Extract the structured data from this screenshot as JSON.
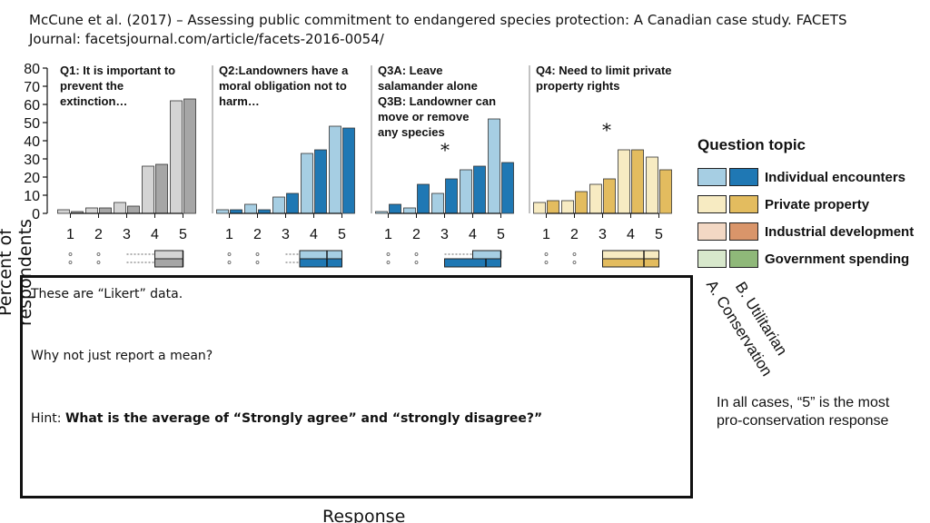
{
  "citation": {
    "line1": "McCune et al. (2017) – Assessing public commitment to endangered species protection: A Canadian case study. FACETS",
    "line2": "Journal: facetsjournal.com/article/facets-2016-0054/"
  },
  "chart_data": {
    "type": "bar",
    "ylabel": "Percent of respondents",
    "xlabel": "Response",
    "ylim": [
      0,
      80
    ],
    "yticks": [
      0,
      10,
      20,
      30,
      40,
      50,
      60,
      70,
      80
    ],
    "categories": [
      "1",
      "2",
      "3",
      "4",
      "5"
    ],
    "panels": [
      {
        "title": [
          "Q1: It is important to",
          "prevent the",
          "extinction…"
        ],
        "topic": "gray",
        "series": [
          {
            "name": "A. Conservation",
            "values": [
              2,
              3,
              6,
              26,
              62
            ]
          },
          {
            "name": "B. Utilitarian",
            "values": [
              1,
              3,
              4,
              27,
              63
            ]
          }
        ],
        "star": false
      },
      {
        "title": [
          "Q2:Landowners have a",
          "moral obligation not to",
          "harm…"
        ],
        "topic": "Individual encounters",
        "series": [
          {
            "name": "A. Conservation",
            "values": [
              2,
              5,
              9,
              33,
              48
            ]
          },
          {
            "name": "B. Utilitarian",
            "values": [
              2,
              2,
              11,
              35,
              47
            ]
          }
        ],
        "star": false
      },
      {
        "title": [
          "Q3A: Leave",
          "salamander alone",
          "Q3B: Landowner can",
          "move or remove",
          "any species"
        ],
        "topic": "Individual encounters",
        "series": [
          {
            "name": "A. Conservation",
            "values": [
              1,
              3,
              11,
              24,
              52
            ]
          },
          {
            "name": "B. Utilitarian",
            "values": [
              5,
              16,
              19,
              26,
              28
            ]
          }
        ],
        "star": true,
        "star_label": "*"
      },
      {
        "title": [
          "Q4: Need to limit private",
          "property rights"
        ],
        "topic": "Private property",
        "series": [
          {
            "name": "A. Conservation",
            "values": [
              6,
              7,
              16,
              35,
              31
            ]
          },
          {
            "name": "B. Utilitarian",
            "values": [
              7,
              12,
              19,
              35,
              24
            ]
          }
        ],
        "star": true,
        "star_label": "*"
      }
    ],
    "colors": {
      "gray_light": "#d4d4d4",
      "gray_dark": "#a6a6a6",
      "blue_light": "#a6cee3",
      "blue_dark": "#1f78b4",
      "yellow_light": "#f7ebc2",
      "yellow_dark": "#e3bc5f"
    }
  },
  "legend": {
    "title": "Question topic",
    "items": [
      {
        "label": "Individual encounters",
        "light": "#a6cee3",
        "dark": "#1f78b4"
      },
      {
        "label": "Private property",
        "light": "#f7ebc2",
        "dark": "#e3bc5f"
      },
      {
        "label": "Industrial development",
        "light": "#f3d8c4",
        "dark": "#d9956a"
      },
      {
        "label": "Government spending",
        "light": "#d8e8cc",
        "dark": "#8fb879"
      }
    ],
    "rotated_a": "A. Conservation",
    "rotated_b": "B. Utilitarian"
  },
  "note_box": {
    "line1": "These are “Likert” data.",
    "line2": "Why not just report a mean?",
    "hint_prefix": "Hint: ",
    "hint_bold": "What is the average of “Strongly agree” and “strongly disagree?”"
  },
  "side_note": "In all cases, “5” is the most pro-conservation response"
}
